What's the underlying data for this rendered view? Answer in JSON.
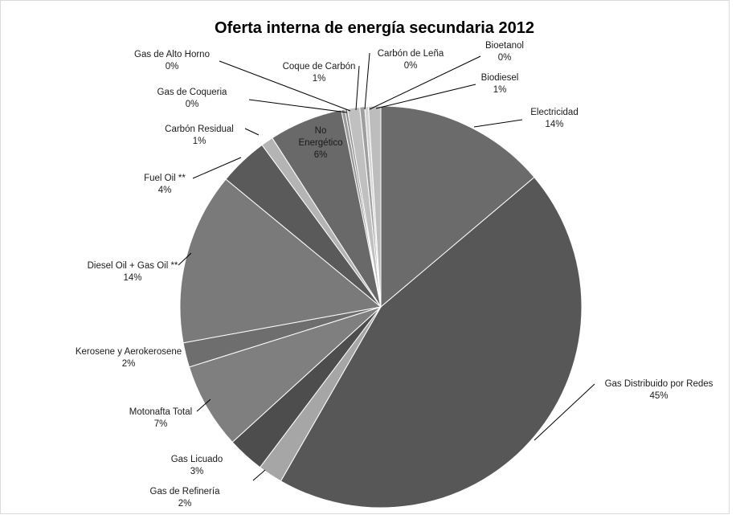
{
  "chart_data": {
    "type": "pie",
    "title": "Oferta interna de energía secundaria 2012",
    "slices": [
      {
        "name": "Electricidad",
        "value": 14,
        "label": "14%",
        "color": "#6b6b6b"
      },
      {
        "name": "Gas Distribuido por Redes",
        "value": 45,
        "label": "45%",
        "color": "#575757"
      },
      {
        "name": "Gas de Refinería",
        "value": 2,
        "label": "2%",
        "color": "#a6a6a6"
      },
      {
        "name": "Gas Licuado",
        "value": 3,
        "label": "3%",
        "color": "#4d4d4d"
      },
      {
        "name": "Motonafta Total",
        "value": 7,
        "label": "7%",
        "color": "#7f7f7f"
      },
      {
        "name": "Kerosene y Aerokerosene",
        "value": 2,
        "label": "2%",
        "color": "#6e6e6e"
      },
      {
        "name": "Diesel Oil + Gas Oil **",
        "value": 14,
        "label": "14%",
        "color": "#7a7a7a"
      },
      {
        "name": "Fuel Oil **",
        "value": 4,
        "label": "4%",
        "color": "#5a5a5a"
      },
      {
        "name": "Carbón Residual",
        "value": 1,
        "label": "1%",
        "color": "#b4b4b4"
      },
      {
        "name": "No Energético",
        "value": 6,
        "label": "6%",
        "color": "#696969"
      },
      {
        "name": "Gas de Coqueria",
        "value": 0.3,
        "label": "0%",
        "color": "#9a9a9a"
      },
      {
        "name": "Gas de Alto Horno",
        "value": 0.2,
        "label": "0%",
        "color": "#8c8c8c"
      },
      {
        "name": "Coque de Carbón",
        "value": 1,
        "label": "1%",
        "color": "#c0c0c0"
      },
      {
        "name": "Carbón de Leña",
        "value": 0.4,
        "label": "0%",
        "color": "#9f9f9f"
      },
      {
        "name": "Bioetanol",
        "value": 0.3,
        "label": "0%",
        "color": "#d3d3d3"
      },
      {
        "name": "Biodiesel",
        "value": 1,
        "label": "1%",
        "color": "#bdbdbd"
      }
    ]
  }
}
